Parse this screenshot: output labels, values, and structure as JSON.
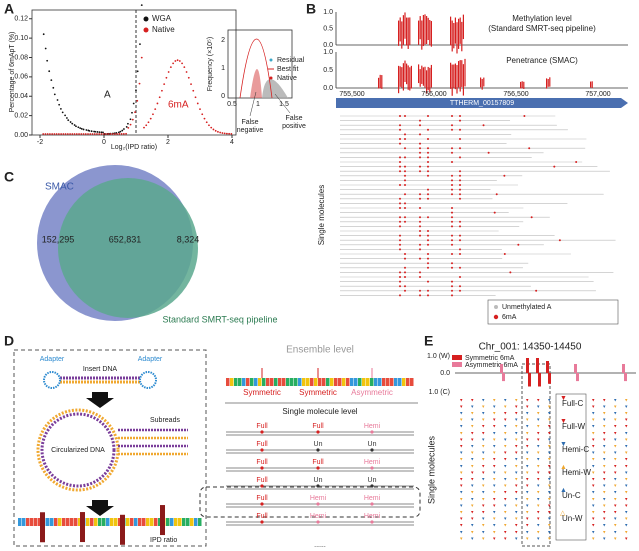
{
  "panels": {
    "a": {
      "letter": "A",
      "legend": [
        "WGA",
        "Native"
      ],
      "y_label": "Percentage of 6mApT (%)",
      "y_ticks": [
        "0.00",
        "0.02",
        "0.04",
        "0.06",
        "0.08",
        "0.10",
        "0.12"
      ],
      "x_ticks": [
        "-2",
        "0",
        "2",
        "4"
      ],
      "x_label": "Log₂(IPD ratio)",
      "annotation_left": "A",
      "annotation_right": "6mA",
      "inset": {
        "y_label": "Frequency (×10⁵)",
        "y_ticks": [
          "0",
          "1",
          "2"
        ],
        "x_ticks": [
          "0.5",
          "1",
          "1.5"
        ],
        "legend": [
          "Residual",
          "Best fit",
          "Native"
        ],
        "false_negative": [
          "False",
          "negative"
        ],
        "false_positive": [
          "False",
          "positive"
        ]
      }
    },
    "b": {
      "letter": "B",
      "methylation_label": [
        "Methylation level",
        "(Standard SMRT-seq pipeline)"
      ],
      "penetrance_label": "Penetrance (SMAC)",
      "y_ticks": [
        "1.0",
        "0.5",
        "0.0"
      ],
      "x_ticks": [
        "755,500",
        "756,000",
        "756,500",
        "757,000"
      ],
      "gene": "TTHERM_00157809",
      "y_label": "Single molecules",
      "legend": [
        "Unmethylated A",
        "6mA"
      ]
    },
    "c": {
      "letter": "C",
      "set_a": "SMAC",
      "set_b": "Standard SMRT-seq pipeline",
      "only_a": "152,295",
      "both": "652,831",
      "only_b": "8,324"
    },
    "d": {
      "letter": "D",
      "adapter_left": "Adapter",
      "adapter_right": "Adapter",
      "insert": "Insert DNA",
      "subreads": "Subreads",
      "circular": "Circularized DNA",
      "ipd": "IPD ratio",
      "ensemble": "Ensemble level",
      "ensemble_labels": [
        "Symmetric",
        "Symmetric",
        "Asymmetric"
      ],
      "single": "Single molecule level",
      "rows": [
        [
          "Full",
          "Full",
          "Hemi"
        ],
        [
          "Full",
          "Un",
          "Un"
        ],
        [
          "Full",
          "Full",
          "Hemi"
        ],
        [
          "Full",
          "Un",
          "Un"
        ],
        [
          "Full",
          "Hemi",
          "Hemi"
        ],
        [
          "Full",
          "Hemi",
          "Hemi"
        ]
      ],
      "more": "......"
    },
    "e": {
      "letter": "E",
      "title": "Chr_001: 14350-14450",
      "legend": [
        "Symmetric 6mA",
        "Asymmetric 6mA"
      ],
      "y_ticks": [
        "1.0 (W)",
        "0.0",
        "1.0 (C)"
      ],
      "y_label": "Single molecules",
      "states": [
        "Full-C",
        "Full-W",
        "Hemi-C",
        "Hemi-W",
        "Un-C",
        "Un-W"
      ]
    }
  }
}
